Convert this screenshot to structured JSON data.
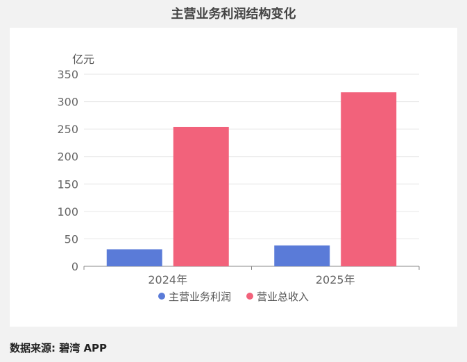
{
  "page": {
    "title": "主营业务利润结构变化",
    "source": "数据来源: 碧湾 APP"
  },
  "chart_data": {
    "type": "bar",
    "title": "主营业务利润结构变化",
    "unit": "亿元",
    "categories": [
      "2024年",
      "2025年"
    ],
    "series": [
      {
        "name": "主营业务利润",
        "color": "#5a7bd8",
        "values": [
          31,
          38
        ]
      },
      {
        "name": "营业总收入",
        "color": "#f2627b",
        "values": [
          254,
          317
        ]
      }
    ],
    "yticks": [
      0,
      50,
      100,
      150,
      200,
      250,
      300,
      350
    ],
    "ylim": [
      0,
      350
    ],
    "grid": true,
    "legend_position": "bottom"
  }
}
